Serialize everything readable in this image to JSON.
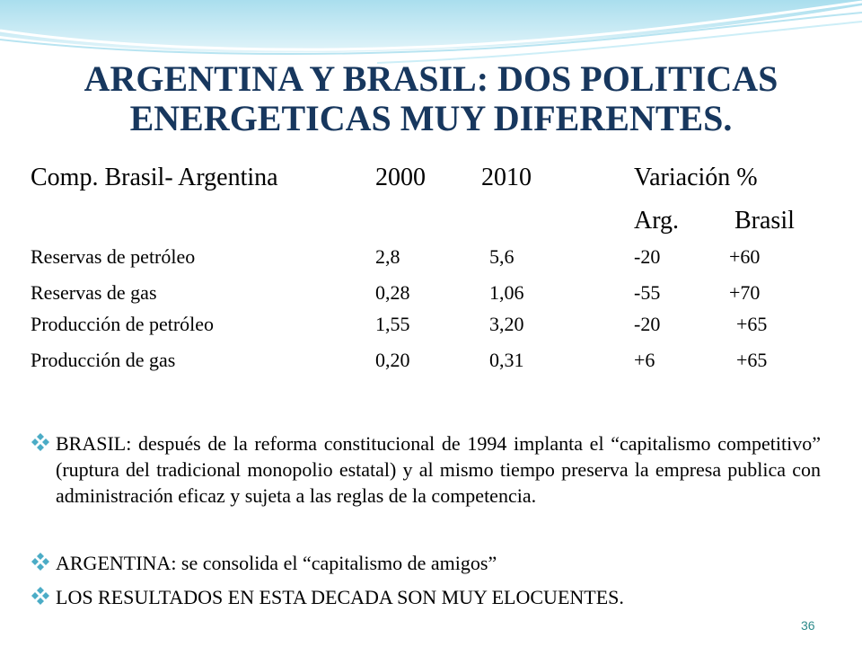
{
  "title": {
    "line1": "ARGENTINA Y BRASIL: DOS POLITICAS",
    "line2": "ENERGETICAS  MUY DIFERENTES."
  },
  "table": {
    "header": {
      "label": "Comp. Brasil- Argentina",
      "y2000": "2000",
      "y2010": "2010",
      "variacion": "Variación %"
    },
    "subheader": {
      "arg": "Arg.",
      "brasil": "Brasil"
    },
    "rows": [
      {
        "label": "Reservas de petróleo",
        "y2000": "2,8",
        "y2010": "5,6",
        "arg": "-20",
        "brasil": "+60"
      },
      {
        "label": "Reservas de gas",
        "y2000": "0,28",
        "y2010": "1,06",
        "arg": "-55",
        "brasil": "+70"
      },
      {
        "label": "Producción de petróleo",
        "y2000": "1,55",
        "y2010": "3,20",
        "arg": "-20",
        "brasil": "+65"
      },
      {
        "label": "Producción de gas",
        "y2000": "0,20",
        "y2010": "0,31",
        "arg": "+6",
        "brasil": "+65"
      }
    ]
  },
  "bullets": [
    "BRASIL: después de la reforma constitucional de 1994 implanta el “capitalismo competitivo” (ruptura del tradicional monopolio estatal) y al mismo tiempo preserva la empresa publica con administración eficaz y sujeta a las reglas de la competencia.",
    "ARGENTINA: se consolida el “capitalismo de amigos”",
    "LOS RESULTADOS EN ESTA DECADA SON MUY ELOCUENTES."
  ],
  "page_number": "36",
  "colors": {
    "title": "#17375e",
    "bullet_icon": "#4bacc6",
    "wave": "#8dd3e8",
    "page_number": "#2e8b8b"
  },
  "icons": {
    "bullet": "four-diamond-bullet-icon"
  }
}
